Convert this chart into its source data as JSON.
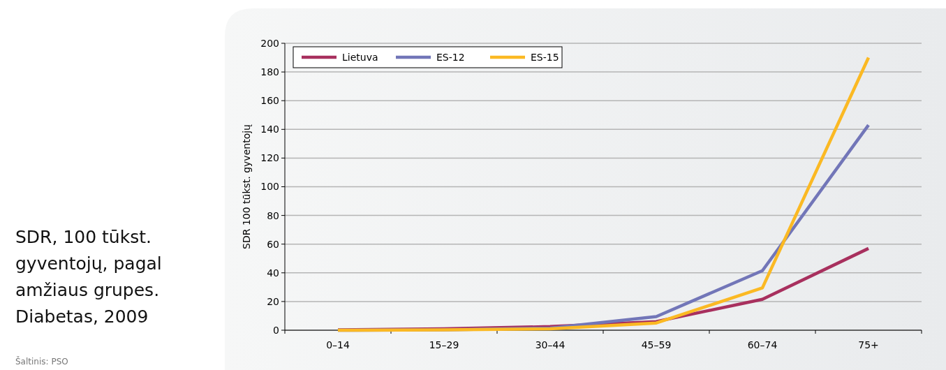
{
  "chart_data": {
    "type": "line",
    "title": "SDR, 100 tūkst. gyventojų, pagal amžiaus grupes. Diabetas, 2009",
    "ylabel": "SDR 100 tūkst. gyventojų",
    "categories": [
      "0–14",
      "15–29",
      "30–44",
      "45–59",
      "60–74",
      "75+"
    ],
    "series": [
      {
        "name": "Lietuva",
        "color": "#a8305e",
        "values": [
          0.3,
          1,
          2.5,
          6,
          21.5,
          57
        ]
      },
      {
        "name": "ES-12",
        "color": "#7276b8",
        "values": [
          0,
          0.3,
          1.5,
          9.5,
          41.5,
          143
        ]
      },
      {
        "name": "ES-15",
        "color": "#fbb923",
        "values": [
          0,
          0.2,
          1,
          5,
          29.5,
          190
        ]
      }
    ],
    "ylim": [
      0,
      200
    ],
    "yticks": [
      0,
      20,
      40,
      60,
      80,
      100,
      120,
      140,
      160,
      180,
      200
    ],
    "grid": "y",
    "legend": "top left",
    "line_style": "solid",
    "annotations": [
      "Šaltinis: PSO"
    ]
  }
}
